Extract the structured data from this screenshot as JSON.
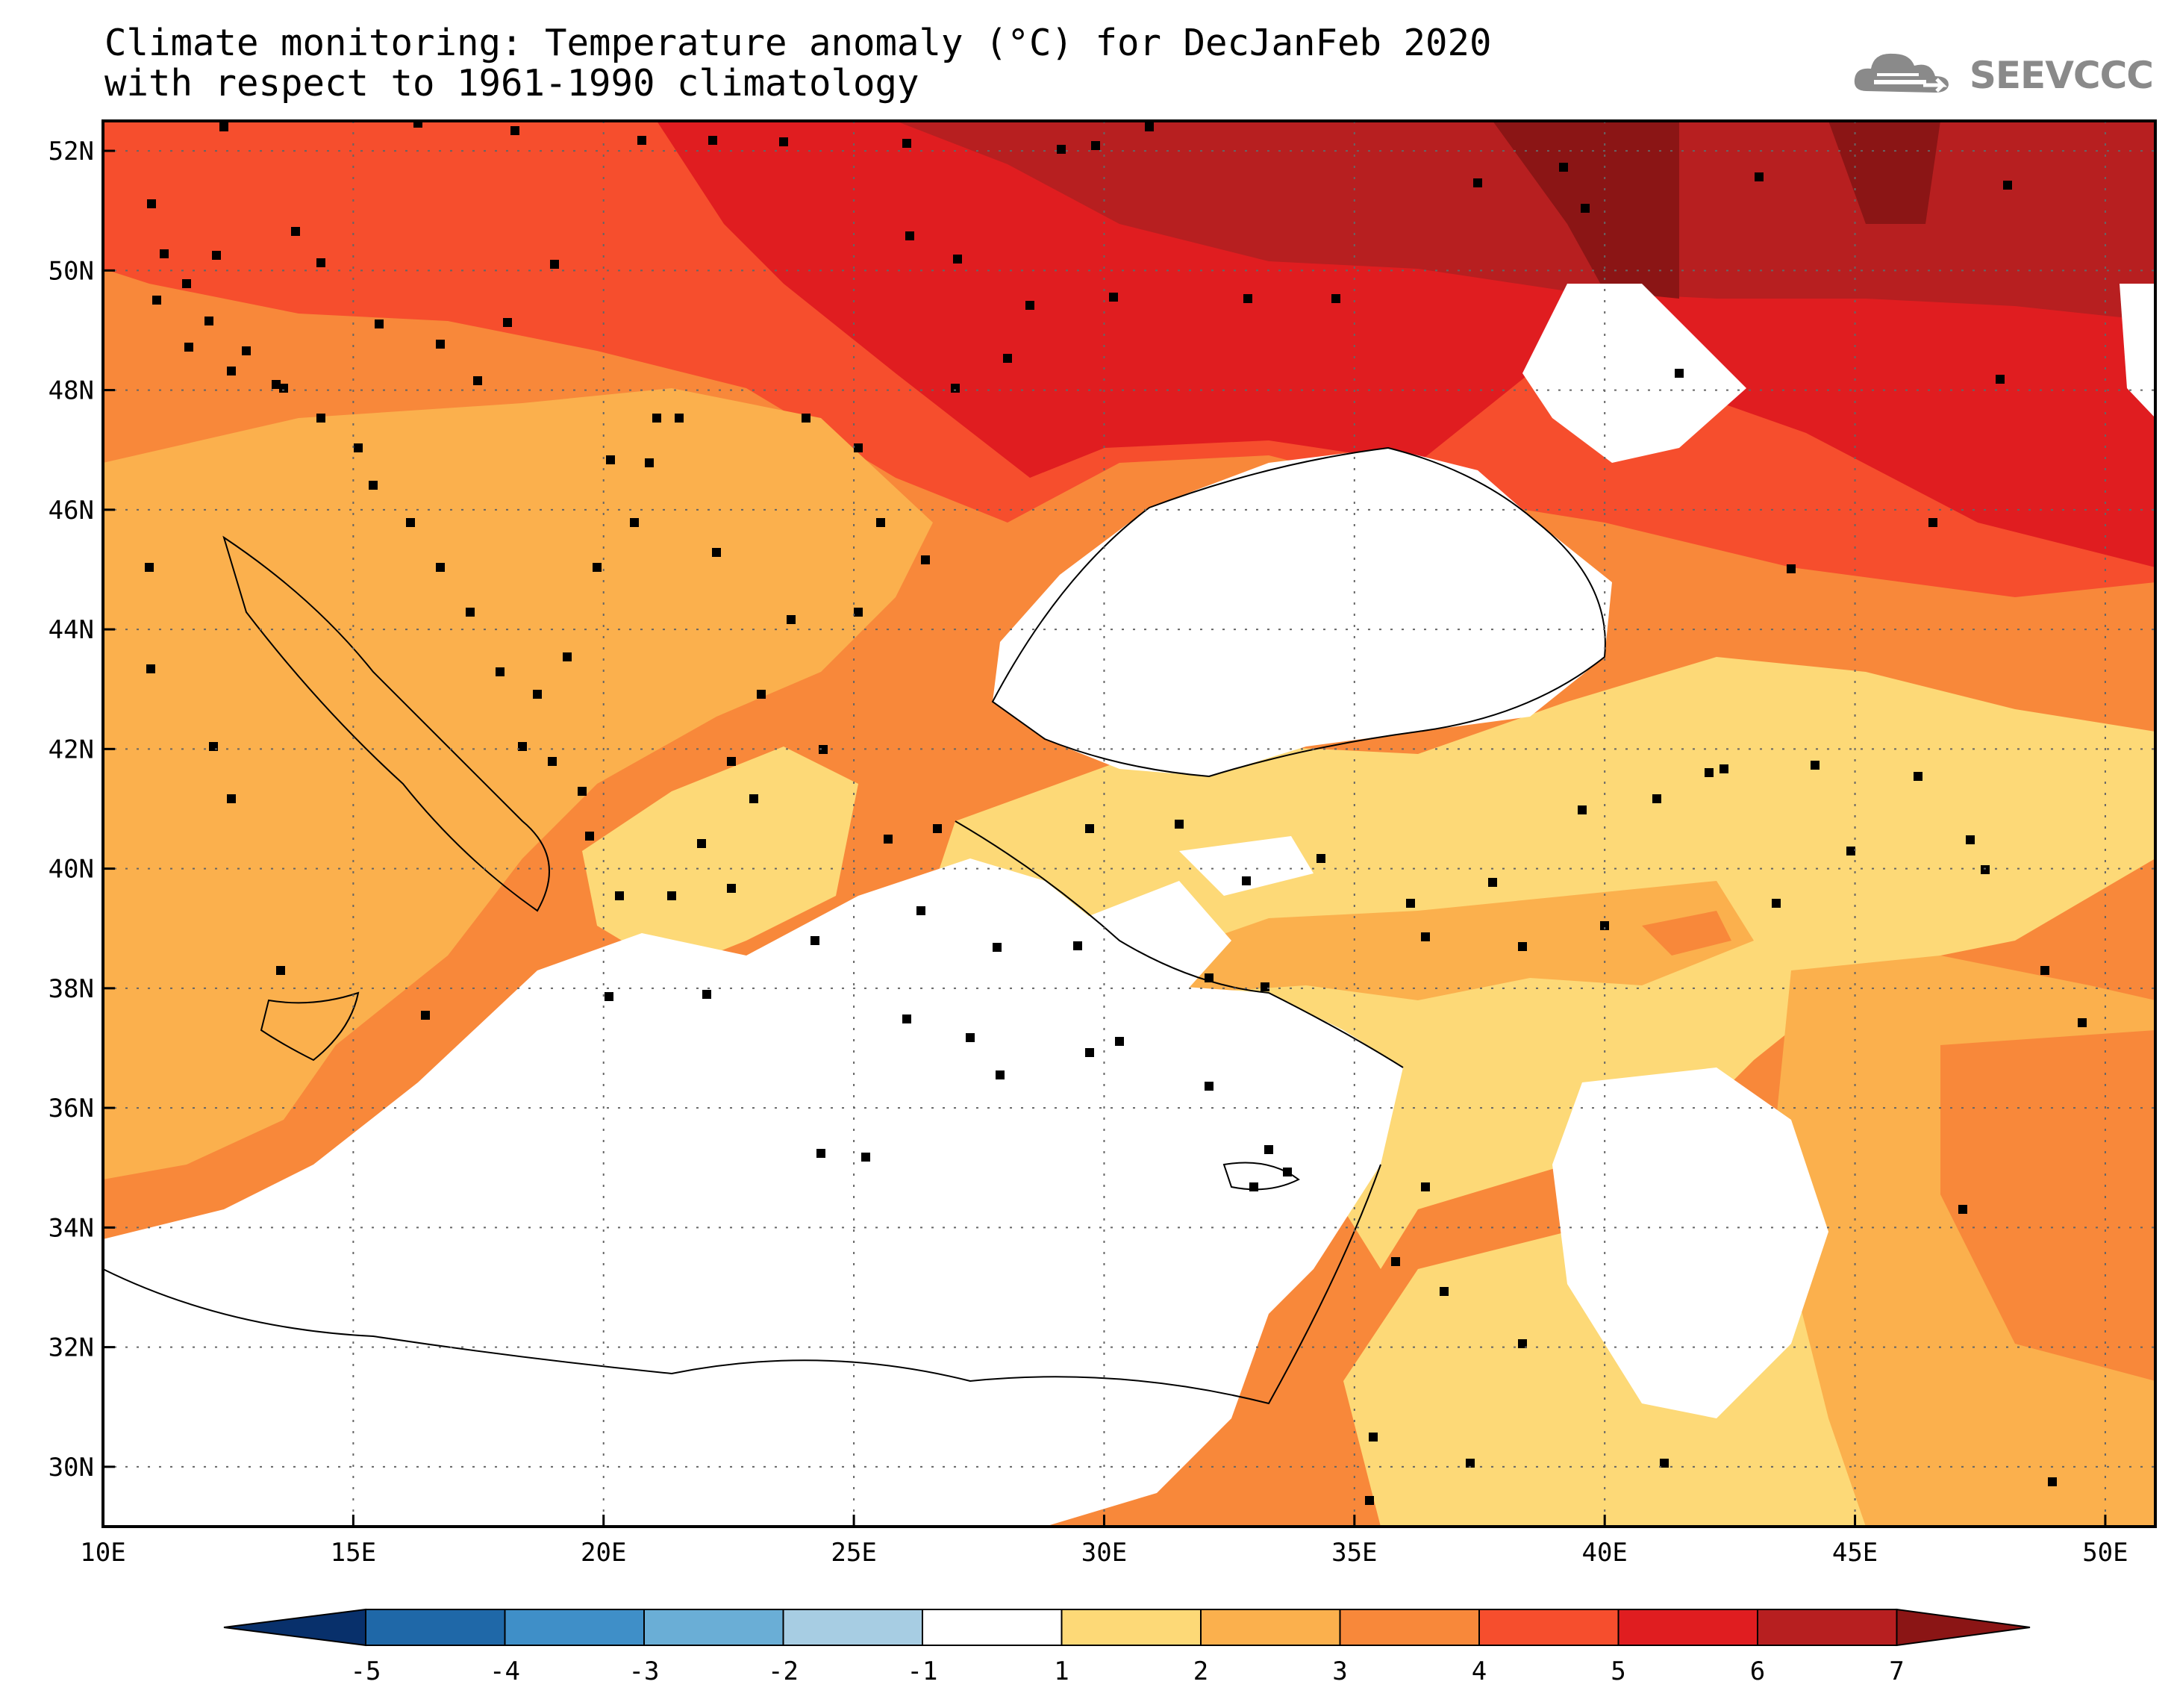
{
  "title": {
    "line1": "Climate monitoring: Temperature anomaly (°C) for DecJanFeb 2020",
    "line2": "with respect to 1961-1990 climatology"
  },
  "logo": {
    "icon": "cloud-icon",
    "text": "SEEVCCC"
  },
  "map": {
    "lon_range": [
      10,
      51
    ],
    "lat_range": [
      29,
      52.5
    ],
    "lon_ticks": [
      10,
      15,
      20,
      25,
      30,
      35,
      40,
      45,
      50
    ],
    "lon_tick_labels": [
      "10E",
      "15E",
      "20E",
      "25E",
      "30E",
      "35E",
      "40E",
      "45E",
      "50E"
    ],
    "lat_ticks": [
      30,
      32,
      34,
      36,
      38,
      40,
      42,
      44,
      46,
      48,
      50,
      52
    ],
    "lat_tick_labels": [
      "30N",
      "32N",
      "34N",
      "36N",
      "38N",
      "40N",
      "42N",
      "44N",
      "46N",
      "48N",
      "50N",
      "52N"
    ],
    "grid": "dotted"
  },
  "colorbar": {
    "boundaries": [
      "-5",
      "-4",
      "-3",
      "-2",
      "-1",
      "1",
      "2",
      "3",
      "4",
      "5",
      "6",
      "7"
    ],
    "colors": [
      "#08306b",
      "#1f68a8",
      "#3f8fc8",
      "#6aaed6",
      "#a7cde3",
      "#ffffff",
      "#fdd977",
      "#fbb04d",
      "#f8883a",
      "#f64e2d",
      "#e01d20",
      "#b71f20",
      "#8b1515"
    ]
  }
}
